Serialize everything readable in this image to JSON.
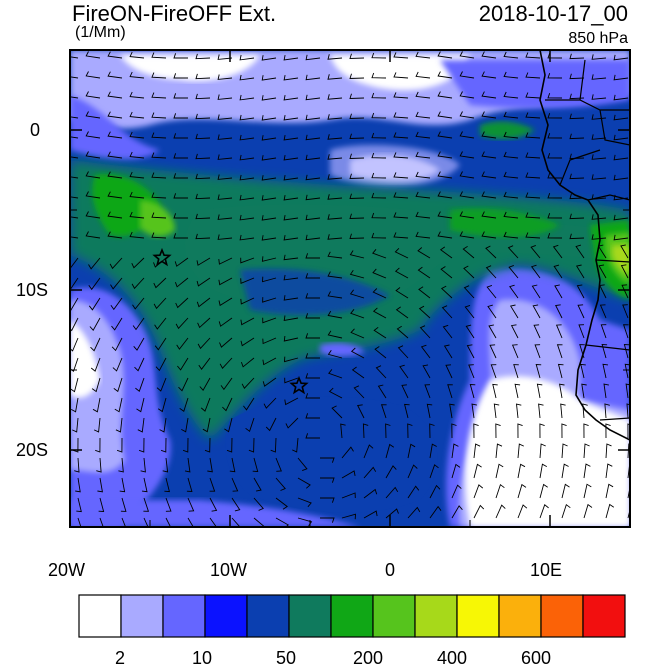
{
  "header": {
    "title": "FireON-FireOFF Ext.",
    "units": "(1/Mm)",
    "datetime": "2018-10-17_00",
    "level": "850 hPa"
  },
  "axes": {
    "lon_labels": [
      "20W",
      "10W",
      "0",
      "10E"
    ],
    "lat_labels": [
      "0",
      "10S",
      "20S"
    ]
  },
  "colorbar": {
    "colors": [
      "#ffffff",
      "#a9aaff",
      "#6566ff",
      "#0b12ff",
      "#0b3fb0",
      "#0f7a5d",
      "#10a716",
      "#56c41d",
      "#a7d91a",
      "#f7f705",
      "#fbb00c",
      "#fb6207",
      "#f20f0f"
    ],
    "tick_labels": [
      "2",
      "10",
      "50",
      "200",
      "400",
      "600"
    ]
  },
  "markers": [
    "star",
    "star"
  ]
}
